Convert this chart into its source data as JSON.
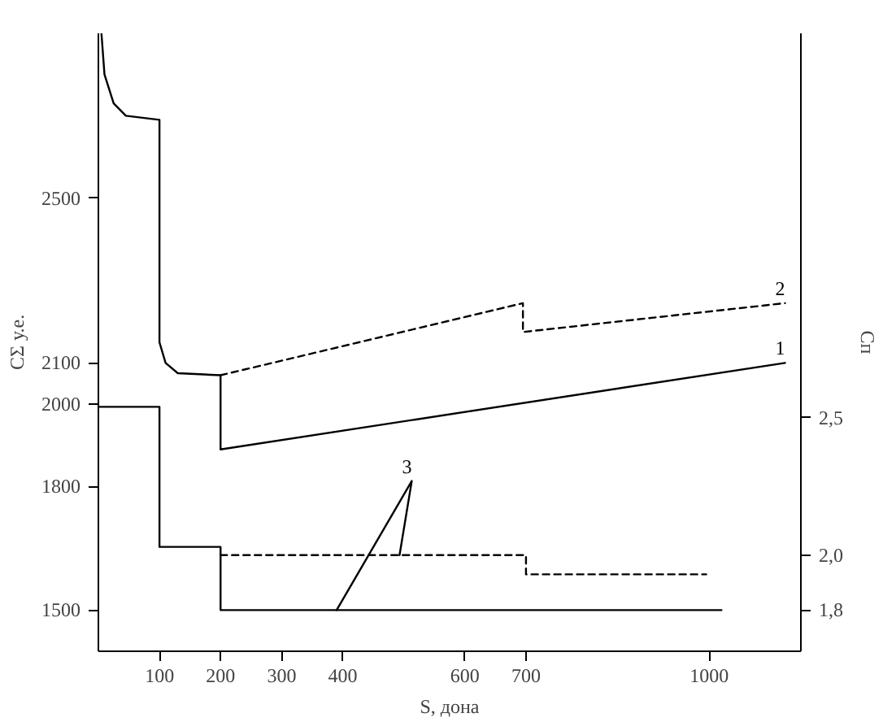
{
  "chart_data": {
    "type": "line",
    "xlabel": "S, дона",
    "ylabel": "CΣ у.е.",
    "y2label": "Cп",
    "xlim": [
      0,
      1150
    ],
    "ylim": [
      1400,
      2900
    ],
    "y2lim": [
      1.65,
      3.9
    ],
    "xticks": [
      100,
      200,
      300,
      400,
      600,
      700,
      1000
    ],
    "yticks": [
      1500,
      1800,
      2000,
      2100,
      2500
    ],
    "y2ticks": [
      {
        "value": 1.8,
        "label": "1,8"
      },
      {
        "value": 2.0,
        "label": "2,0"
      },
      {
        "value": 2.5,
        "label": "2,5"
      }
    ],
    "marker": "none",
    "series": [
      {
        "name": "1",
        "color": "#000000",
        "line_style": "solid",
        "x": [
          5,
          10,
          25,
          45,
          100,
          100,
          110,
          130,
          200,
          200,
          1124
        ],
        "values": [
          2900,
          2800,
          2730,
          2700,
          2690,
          2150,
          2100,
          2075,
          2070,
          1890,
          2100
        ]
      },
      {
        "name": "2",
        "color": "#000000",
        "line_style": "dashed",
        "x": [
          200,
          695,
          695,
          1124
        ],
        "values": [
          2070,
          2245,
          2175,
          2245
        ]
      },
      {
        "color": "#000000",
        "line_style": "solid",
        "axis": "y2",
        "x": [
          0,
          100,
          100,
          200,
          200,
          1020
        ],
        "values": [
          2.54,
          2.54,
          2.03,
          2.03,
          1.8,
          1.8
        ]
      },
      {
        "color": "#000000",
        "line_style": "dashed",
        "axis": "y2",
        "x": [
          200,
          700,
          700,
          995
        ],
        "values": [
          2.0,
          2.0,
          1.93,
          1.93
        ]
      },
      {
        "name": "3",
        "color": "#000000",
        "line_style": "solid",
        "axis": "y2",
        "x": [
          390,
          513,
          493
        ],
        "values": [
          1.8,
          2.27,
          2.0
        ]
      }
    ]
  }
}
